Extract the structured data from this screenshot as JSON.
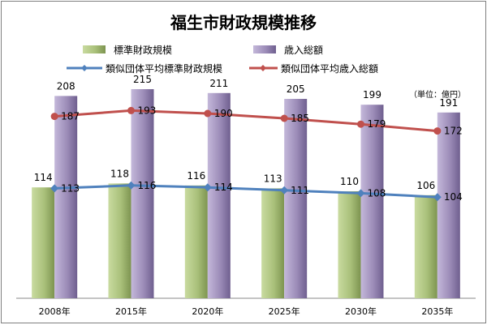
{
  "chart_data": {
    "type": "bar",
    "title": "福生市財政規模推移",
    "unit": "（単位：億円）",
    "categories": [
      "2008年",
      "2015年",
      "2020年",
      "2025年",
      "2030年",
      "2035年"
    ],
    "series": [
      {
        "name": "標準財政規模",
        "kind": "bar",
        "values": [
          114,
          118,
          116,
          113,
          110,
          106
        ],
        "color": "#a9c07a"
      },
      {
        "name": "歳入総額",
        "kind": "bar",
        "values": [
          208,
          215,
          211,
          205,
          199,
          191
        ],
        "color": "#9c8cb8"
      },
      {
        "name": "類似団体平均標準財政規模",
        "kind": "line",
        "values": [
          113,
          116,
          114,
          111,
          108,
          104
        ],
        "color": "#4f81bd"
      },
      {
        "name": "類似団体平均歳入総額",
        "kind": "line",
        "values": [
          187,
          193,
          190,
          185,
          179,
          172
        ],
        "color": "#c0504d"
      }
    ],
    "ylim": [
      0,
      240
    ],
    "grid": false,
    "legend_position": "top"
  }
}
